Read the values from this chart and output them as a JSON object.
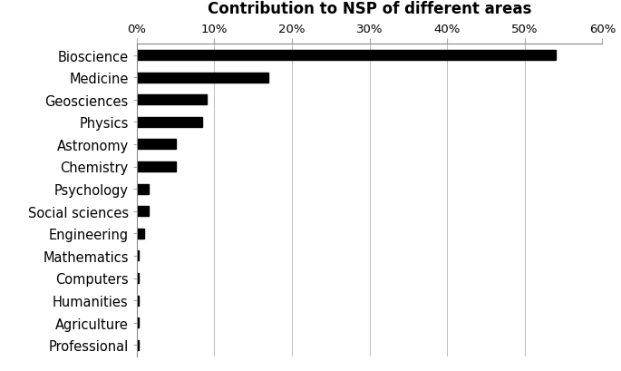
{
  "title": "Contribution to NSP of different areas",
  "categories": [
    "Bioscience",
    "Medicine",
    "Geosciences",
    "Physics",
    "Astronomy",
    "Chemistry",
    "Psychology",
    "Social sciences",
    "Engineering",
    "Mathematics",
    "Computers",
    "Humanities",
    "Agriculture",
    "Professional"
  ],
  "values": [
    54.0,
    17.0,
    9.0,
    8.5,
    5.0,
    5.0,
    1.5,
    1.5,
    1.0,
    0.3,
    0.3,
    0.3,
    0.3,
    0.3
  ],
  "bar_color": "#000000",
  "background_color": "#ffffff",
  "xlim": [
    0,
    60
  ],
  "xticks": [
    0,
    10,
    20,
    30,
    40,
    50,
    60
  ],
  "title_fontsize": 12,
  "tick_fontsize": 9.5,
  "label_fontsize": 10.5,
  "bar_height": 0.45
}
